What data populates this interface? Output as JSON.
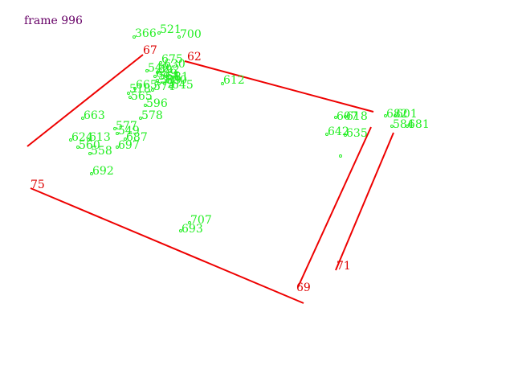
{
  "title": "frame 996",
  "red_labels": [
    "67",
    "62",
    "75",
    "69",
    "71"
  ],
  "green_labels": [
    "366",
    "521",
    "700",
    "675",
    "630",
    "549",
    "592",
    "689",
    "581",
    "564",
    "600",
    "589",
    "645",
    "574",
    "612",
    "665",
    "518",
    "565",
    "596",
    "663",
    "578",
    "577",
    "549",
    "687",
    "624",
    "613",
    "560",
    "558",
    "697",
    "692",
    "707",
    "693",
    "607",
    "618",
    "682",
    "601",
    "642",
    "635",
    "584",
    "681"
  ],
  "colors": {
    "red": "#ee0000",
    "green": "#22ee22",
    "title": "#660066"
  }
}
